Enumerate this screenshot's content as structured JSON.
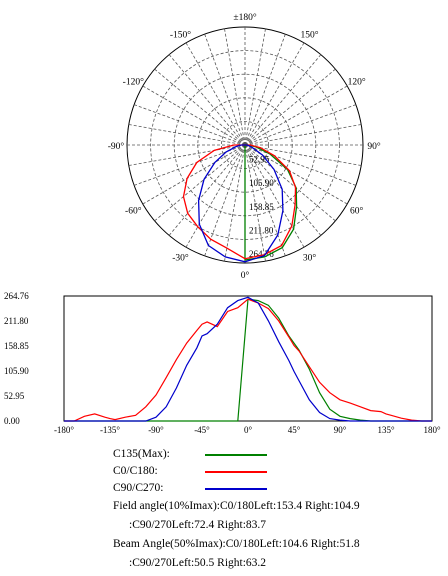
{
  "chart_data": [
    {
      "type": "polar",
      "angle_labels": [
        "±180°",
        "150°",
        "120°",
        "90°",
        "60°",
        "30°",
        "0°",
        "-30°",
        "-60°",
        "-90°",
        "-120°",
        "-150°"
      ],
      "radial_tick_labels": [
        "52.95",
        "105.90",
        "158.85",
        "211.80",
        "264.76"
      ],
      "rmax": 264.76,
      "grid": true,
      "series": [
        {
          "name": "C135(Max)",
          "color": "#008000",
          "theta": [
            0,
            10,
            20,
            30,
            40,
            50,
            60,
            70,
            80,
            90
          ],
          "r": [
            258,
            255,
            245,
            218,
            180,
            150,
            110,
            60,
            25,
            8
          ]
        },
        {
          "name": "C0/C180",
          "color": "#ff0000",
          "theta": [
            -90,
            -80,
            -70,
            -60,
            -50,
            -40,
            -30,
            -20,
            -10,
            0,
            10,
            20,
            30,
            40,
            50,
            60,
            70,
            80,
            90
          ],
          "r": [
            25,
            70,
            115,
            150,
            180,
            200,
            212,
            225,
            235,
            255,
            250,
            240,
            210,
            175,
            148,
            115,
            70,
            35,
            12
          ]
        },
        {
          "name": "C90/C270",
          "color": "#0000cc",
          "theta": [
            -90,
            -80,
            -70,
            -60,
            -50,
            -40,
            -30,
            -20,
            -10,
            0,
            10,
            20,
            30,
            40,
            50,
            60,
            70,
            80,
            90
          ],
          "r": [
            8,
            20,
            45,
            78,
            120,
            162,
            205,
            240,
            255,
            262,
            252,
            215,
            170,
            130,
            85,
            45,
            18,
            8,
            4
          ]
        }
      ]
    },
    {
      "type": "line",
      "x": [
        -180,
        -170,
        -160,
        -150,
        -140,
        -135,
        -130,
        -120,
        -110,
        -100,
        -90,
        -80,
        -70,
        -60,
        -50,
        -45,
        -40,
        -30,
        -20,
        -10,
        0,
        10,
        20,
        30,
        40,
        45,
        50,
        60,
        70,
        80,
        90,
        100,
        110,
        120,
        130,
        135,
        140,
        150,
        160,
        170,
        180
      ],
      "xticks": [
        "-180°",
        "-135°",
        "-90°",
        "-45°",
        "0°",
        "45°",
        "90°",
        "135°",
        "180°"
      ],
      "xlim": [
        -180,
        180
      ],
      "yticks": [
        "264.76",
        "211.80",
        "158.85",
        "105.90",
        "52.95",
        "0.00"
      ],
      "ylim": [
        0,
        264.76
      ],
      "grid": false,
      "series": [
        {
          "name": "C135(Max)",
          "color": "#008000",
          "y": [
            0,
            0,
            0,
            0,
            0,
            0,
            0,
            0,
            0,
            0,
            0,
            0,
            0,
            0,
            0,
            0,
            0,
            0,
            0,
            0,
            258,
            255,
            245,
            218,
            180,
            165,
            150,
            110,
            60,
            25,
            10,
            5,
            2,
            0,
            0,
            0,
            0,
            0,
            0,
            0,
            0
          ]
        },
        {
          "name": "C0/C180",
          "color": "#ff0000",
          "y": [
            0,
            0,
            10,
            15,
            8,
            5,
            3,
            8,
            12,
            30,
            55,
            92,
            130,
            165,
            192,
            205,
            210,
            200,
            232,
            240,
            258,
            250,
            238,
            212,
            178,
            160,
            148,
            115,
            82,
            60,
            45,
            38,
            30,
            22,
            20,
            15,
            12,
            6,
            2,
            0,
            0
          ]
        },
        {
          "name": "C90/C270",
          "color": "#0000cc",
          "y": [
            0,
            0,
            0,
            0,
            0,
            0,
            0,
            0,
            0,
            0,
            8,
            30,
            70,
            118,
            155,
            180,
            185,
            205,
            240,
            255,
            262,
            250,
            212,
            168,
            128,
            105,
            85,
            45,
            18,
            5,
            2,
            0,
            0,
            0,
            0,
            0,
            0,
            0,
            0,
            0,
            0
          ]
        }
      ]
    }
  ],
  "legend": [
    {
      "label": "C135(Max):",
      "color": "#008000"
    },
    {
      "label": "C0/C180:",
      "color": "#ff0000"
    },
    {
      "label": "C90/C270:",
      "color": "#0000cc"
    }
  ],
  "notes": {
    "field_angle_1": "Field angle(10%Imax):C0/180Left:153.4 Right:104.9",
    "field_angle_2": ":C90/270Left:72.4 Right:83.7",
    "beam_angle_1": "Beam Angle(50%Imax):C0/180Left:104.6 Right:51.8",
    "beam_angle_2": ":C90/270Left:50.5 Right:63.2"
  }
}
